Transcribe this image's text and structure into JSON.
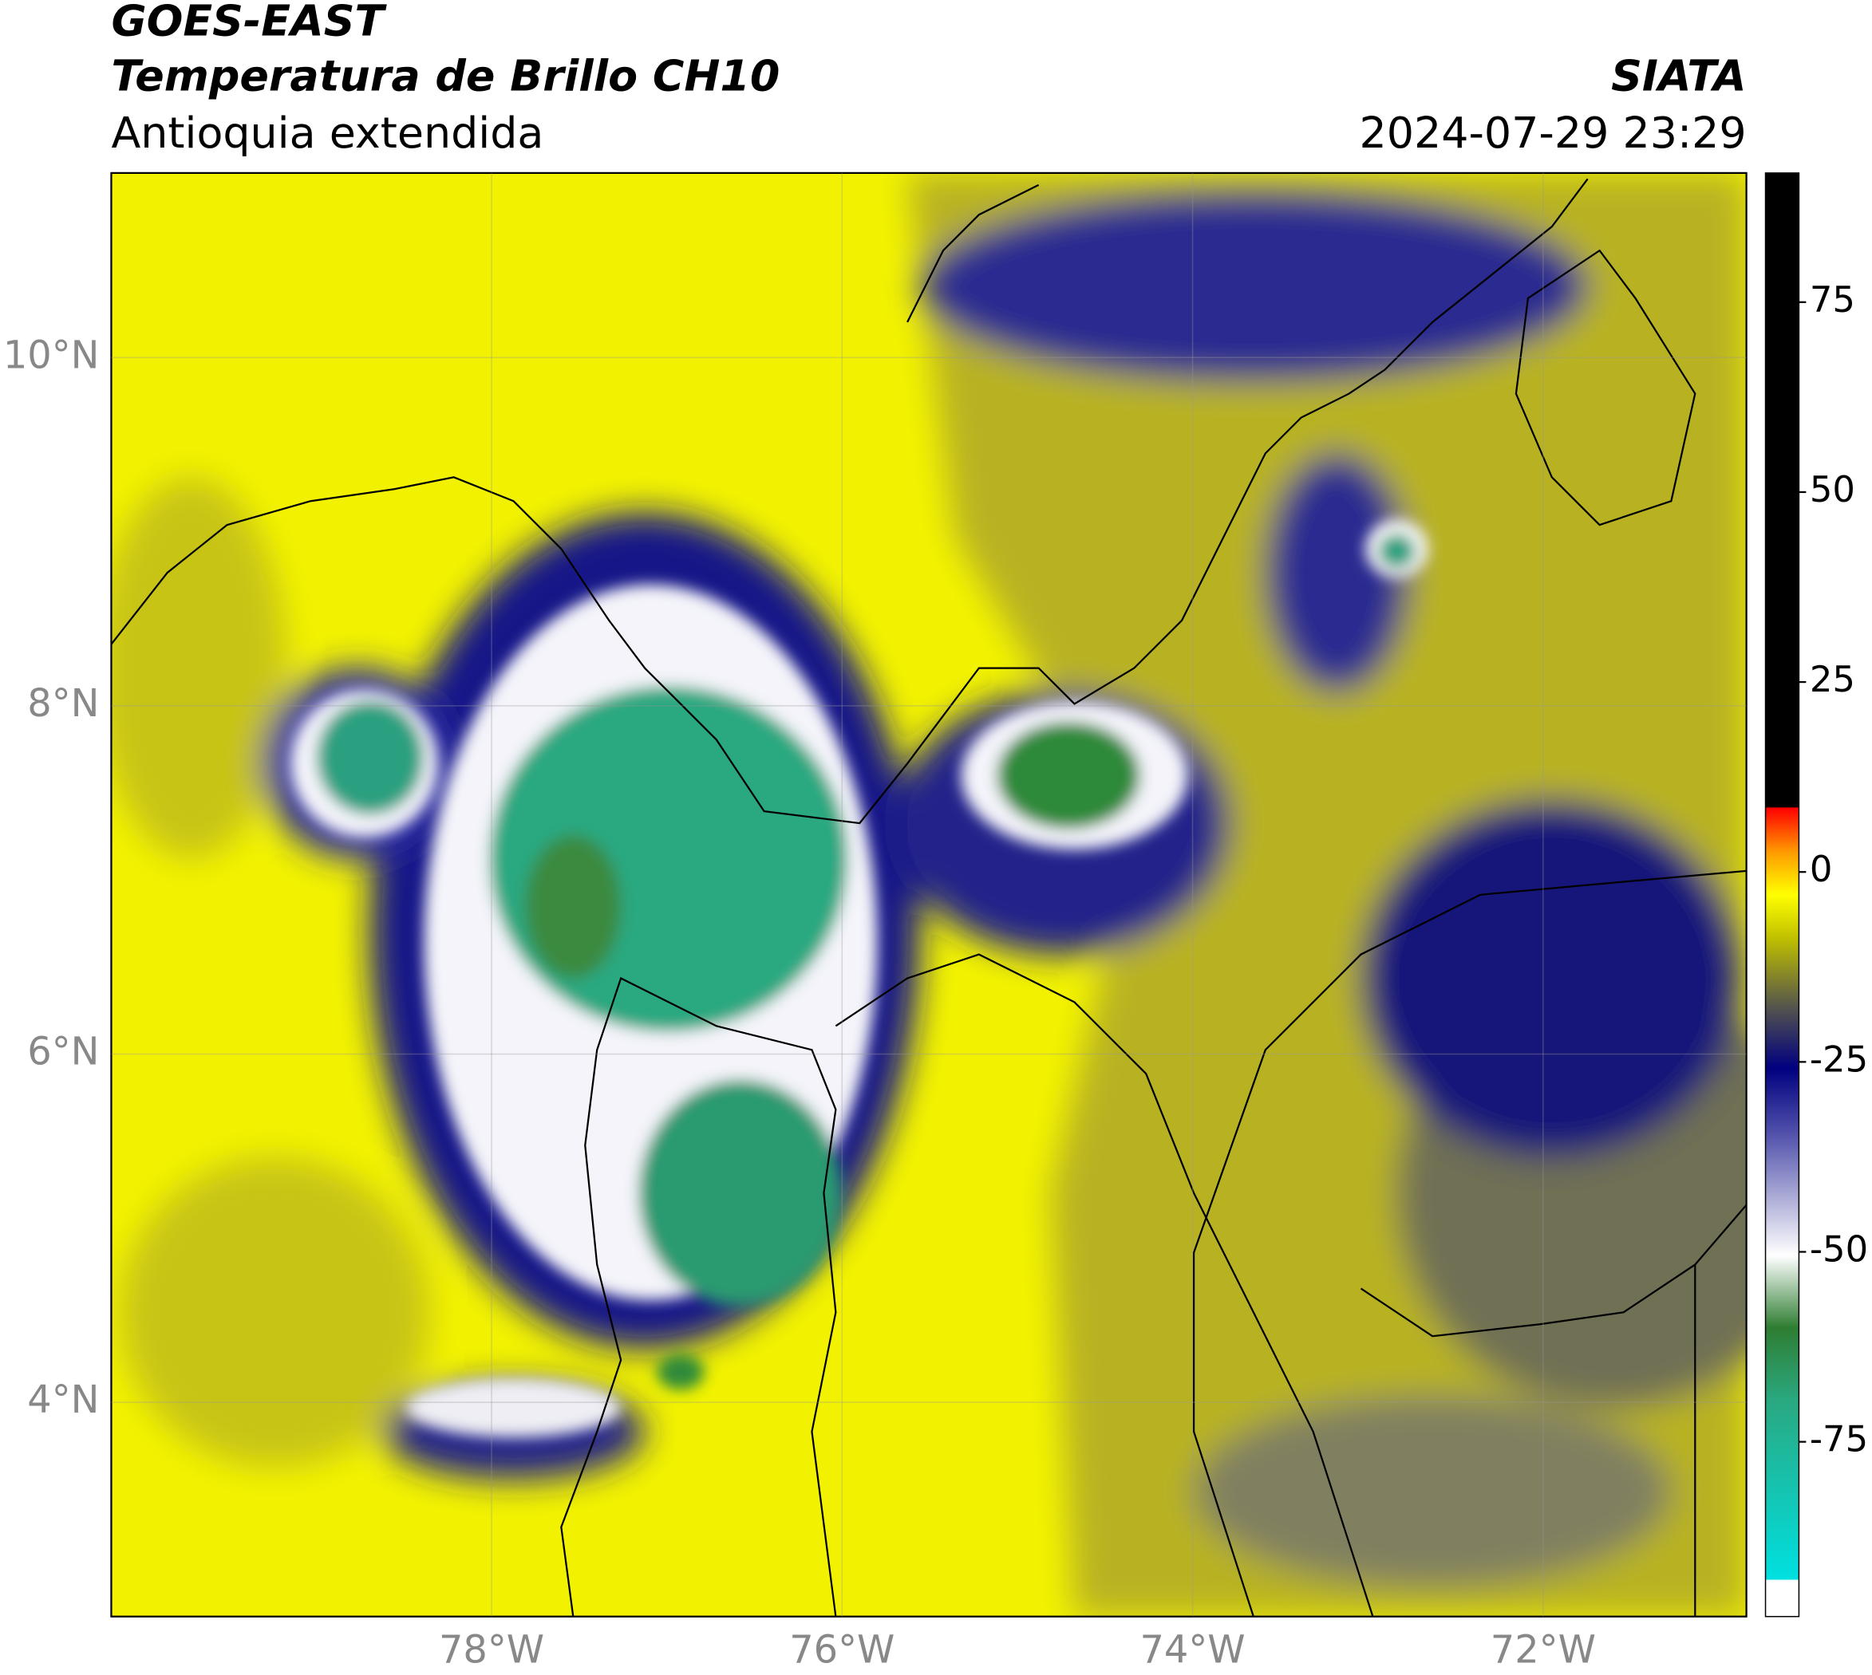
{
  "header": {
    "title": "GOES-EAST",
    "subtitle": "Temperatura de Brillo CH10",
    "region": "Antioquia extendida",
    "source": "SIATA",
    "timestamp": "2024-07-29 23:29"
  },
  "chart_data": {
    "type": "map",
    "xlim": [
      -80.17,
      -70.84
    ],
    "ylim": [
      2.77,
      11.06
    ],
    "xticks": [
      {
        "value": -78,
        "label": "78°W"
      },
      {
        "value": -76,
        "label": "76°W"
      },
      {
        "value": -74,
        "label": "74°W"
      },
      {
        "value": -72,
        "label": "72°W"
      }
    ],
    "yticks": [
      {
        "value": 4,
        "label": "4°N"
      },
      {
        "value": 6,
        "label": "6°N"
      },
      {
        "value": 8,
        "label": "8°N"
      },
      {
        "value": 10,
        "label": "10°N"
      }
    ],
    "grid": true,
    "colorbar": {
      "lim": [
        -98,
        92
      ],
      "ticks": [
        -75,
        -50,
        -25,
        0,
        25,
        50,
        75
      ]
    }
  }
}
